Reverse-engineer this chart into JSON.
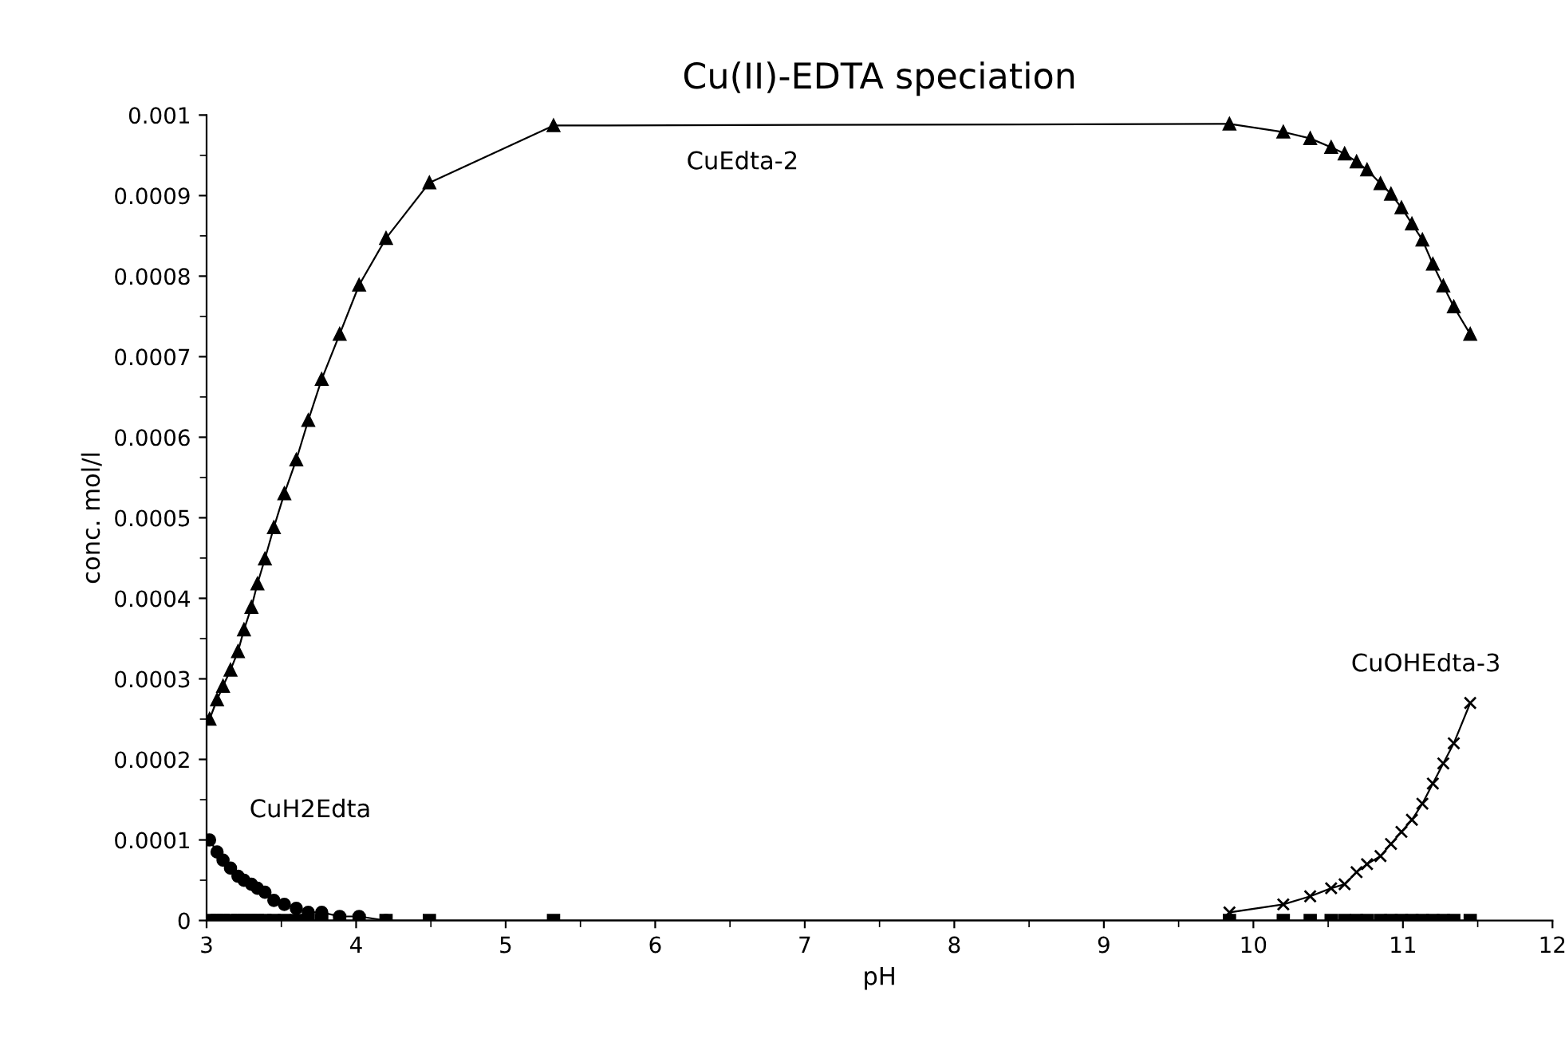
{
  "chart_data": {
    "type": "line",
    "title": "Cu(II)-EDTA speciation",
    "xlabel": "pH",
    "ylabel": "conc. mol/l",
    "x": [
      3.02,
      3.07,
      3.11,
      3.16,
      3.21,
      3.25,
      3.3,
      3.34,
      3.39,
      3.45,
      3.52,
      3.6,
      3.68,
      3.77,
      3.89,
      4.02,
      4.2,
      4.49,
      5.32,
      9.84,
      10.2,
      10.38,
      10.52,
      10.61,
      10.69,
      10.76,
      10.85,
      10.92,
      10.99,
      11.06,
      11.13,
      11.2,
      11.27,
      11.34,
      11.45
    ],
    "xlim": [
      3,
      12
    ],
    "xticks": [
      3,
      4,
      5,
      6,
      7,
      8,
      9,
      10,
      11,
      12
    ],
    "ylim": [
      0,
      0.001
    ],
    "yticks": [
      0,
      0.0001,
      0.0002,
      0.0003,
      0.0004,
      0.0005,
      0.0006,
      0.0007,
      0.0008,
      0.0009,
      0.001
    ],
    "grid": false,
    "series": [
      {
        "name": "CuEdta-2",
        "color": "#000000",
        "marker": "triangle",
        "values": [
          0.00025,
          0.000274,
          0.000291,
          0.000311,
          0.000334,
          0.000361,
          0.000389,
          0.000418,
          0.000449,
          0.000488,
          0.00053,
          0.000572,
          0.000621,
          0.000672,
          0.000728,
          0.000789,
          0.000847,
          0.000916,
          0.000987,
          0.000989,
          0.000979,
          0.000971,
          0.00096,
          0.000952,
          0.000942,
          0.000932,
          0.000915,
          0.000902,
          0.000885,
          0.000865,
          0.000845,
          0.000815,
          0.000788,
          0.000762,
          0.000728
        ]
      },
      {
        "name": "CuH2Edta",
        "color": "#000000",
        "marker": "circle",
        "values": [
          0.0001,
          8.5e-05,
          7.5e-05,
          6.5e-05,
          5.5e-05,
          5e-05,
          4.5e-05,
          4e-05,
          3.5e-05,
          2.5e-05,
          2e-05,
          1.5e-05,
          1e-05,
          1e-05,
          5e-06,
          5e-06,
          0,
          null,
          null,
          null,
          null,
          null,
          null,
          null,
          null,
          null,
          null,
          null,
          null,
          null,
          null,
          null,
          null,
          null,
          null
        ]
      },
      {
        "name": "CuOHEdta-3",
        "color": "#000000",
        "marker": "cross",
        "values": [
          null,
          null,
          null,
          null,
          null,
          null,
          null,
          null,
          null,
          null,
          null,
          null,
          null,
          null,
          null,
          null,
          null,
          null,
          null,
          1e-05,
          2e-05,
          3e-05,
          4e-05,
          4.5e-05,
          6e-05,
          7e-05,
          8e-05,
          9.5e-05,
          0.00011,
          0.000125,
          0.000145,
          0.00017,
          0.000195,
          0.00022,
          0.00027
        ]
      },
      {
        "color": "#000000",
        "marker": "square",
        "values": [
          0,
          0,
          0,
          0,
          0,
          0,
          0,
          0,
          0,
          0,
          0,
          0,
          0,
          0,
          0,
          0,
          0,
          0,
          0,
          0,
          0,
          0,
          0,
          0,
          0,
          0,
          0,
          0,
          0,
          0,
          0,
          0,
          0,
          0,
          0
        ]
      }
    ]
  }
}
